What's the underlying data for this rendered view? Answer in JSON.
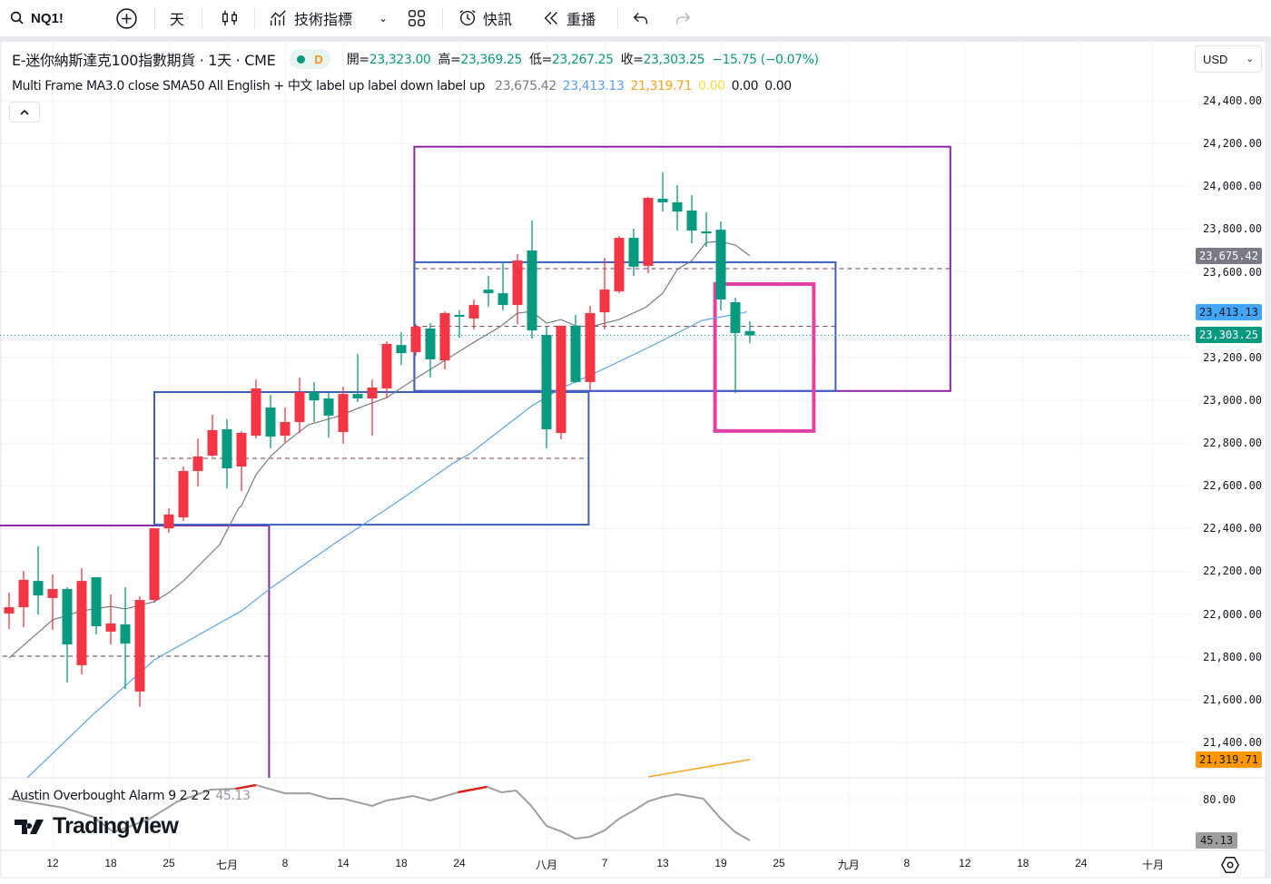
{
  "toolbar": {
    "symbol": "NQ1!",
    "interval": "天",
    "indicators_label": "技術指標",
    "alert_label": "快訊",
    "replay_label": "重播"
  },
  "legend": {
    "title": "E-迷你納斯達克100指數期貨 · 1天 · CME",
    "status_letter": "D",
    "open_label": "開=",
    "open": "23,323.00",
    "high_label": "高=",
    "high": "23,369.25",
    "low_label": "低=",
    "low": "23,267.25",
    "close_label": "收=",
    "close": "23,303.25",
    "change": "−15.75 (−0.07%)"
  },
  "indicator_legend": {
    "name": "Multi Frame MA3.0 close SMA50 All English + 中文 label up label down label up",
    "values": [
      {
        "text": "23,675.42",
        "color": "#787b86"
      },
      {
        "text": "23,413.13",
        "color": "#5b9cf6"
      },
      {
        "text": "21,319.71",
        "color": "#f7a21b"
      },
      {
        "text": "0.00",
        "color": "#f5e042"
      },
      {
        "text": "0.00",
        "color": "#131722"
      },
      {
        "text": "0.00",
        "color": "#131722"
      }
    ]
  },
  "currency": "USD",
  "price_axis": [
    "24,400.00",
    "24,200.00",
    "24,000.00",
    "23,800.00",
    "23,600.00",
    "23,200.00",
    "23,000.00",
    "22,800.00",
    "22,600.00",
    "22,400.00",
    "22,200.00",
    "22,000.00",
    "21,800.00",
    "21,600.00",
    "21,400.00"
  ],
  "price_tags": [
    {
      "text": "23,675.42",
      "value": 23675.42,
      "bg": "#787b86",
      "fg": "#ffffff"
    },
    {
      "text": "23,413.13",
      "value": 23413.13,
      "bg": "#42a5f5",
      "fg": "#131722"
    },
    {
      "text": "23,303.25",
      "value": 23303.25,
      "bg": "#089981",
      "fg": "#ffffff"
    },
    {
      "text": "21,319.71",
      "value": 21319.71,
      "bg": "#ff9800",
      "fg": "#131722"
    }
  ],
  "oscillator": {
    "name": "Austin Overbought Alarm 9 2 2 2",
    "value": "45.13",
    "axis_label": "80.00",
    "tag": "45.13"
  },
  "time_axis": [
    {
      "label": "12",
      "bar": 3
    },
    {
      "label": "18",
      "bar": 7
    },
    {
      "label": "25",
      "bar": 11
    },
    {
      "label": "七月",
      "bar": 15
    },
    {
      "label": "8",
      "bar": 19
    },
    {
      "label": "14",
      "bar": 23
    },
    {
      "label": "18",
      "bar": 27
    },
    {
      "label": "24",
      "bar": 31
    },
    {
      "label": "八月",
      "bar": 37
    },
    {
      "label": "7",
      "bar": 41
    },
    {
      "label": "13",
      "bar": 45
    },
    {
      "label": "19",
      "bar": 49
    },
    {
      "label": "25",
      "bar": 53
    },
    {
      "label": "九月",
      "bar": 57.8
    },
    {
      "label": "8",
      "bar": 61.8
    },
    {
      "label": "12",
      "bar": 65.8
    },
    {
      "label": "18",
      "bar": 69.8
    },
    {
      "label": "24",
      "bar": 73.8
    },
    {
      "label": "十月",
      "bar": 78.75
    }
  ],
  "colors": {
    "up": "#f23645",
    "down": "#089981",
    "ma": "#787b86",
    "sma50": "#5aa6e0",
    "ma_long": "#f7a21b",
    "osc": "#9e9e9e",
    "osc_hot": "#e0201b"
  },
  "chart_data": {
    "type": "candlestick",
    "y_range": [
      21200,
      24450
    ],
    "candles": [
      [
        22003,
        22100,
        21930,
        22032
      ],
      [
        22032,
        22202,
        21939,
        22160
      ],
      [
        22155,
        22317,
        21998,
        22087
      ],
      [
        22075,
        22185,
        21926,
        22117
      ],
      [
        22117,
        22126,
        21680,
        21858
      ],
      [
        21761,
        22215,
        21718,
        22155
      ],
      [
        22172,
        22172,
        21905,
        21943
      ],
      [
        21918,
        22092,
        21858,
        21956
      ],
      [
        21952,
        22126,
        21650,
        21862
      ],
      [
        21638,
        22083,
        21566,
        22066
      ],
      [
        22066,
        22401,
        22053,
        22401
      ],
      [
        22401,
        22495,
        22380,
        22465
      ],
      [
        22452,
        22690,
        22435,
        22669
      ],
      [
        22669,
        22821,
        22597,
        22737
      ],
      [
        22741,
        22932,
        22735,
        22860
      ],
      [
        22864,
        22911,
        22588,
        22681
      ],
      [
        22690,
        22855,
        22575,
        22847
      ],
      [
        22834,
        23097,
        22821,
        23055
      ],
      [
        22966,
        23025,
        22775,
        22830
      ],
      [
        22834,
        22966,
        22804,
        22898
      ],
      [
        22898,
        23106,
        22847,
        23038
      ],
      [
        23038,
        23085,
        22898,
        22999
      ],
      [
        23008,
        23034,
        22826,
        22928
      ],
      [
        22851,
        23063,
        22796,
        23029
      ],
      [
        23029,
        23216,
        22991,
        23008
      ],
      [
        23008,
        23097,
        22834,
        23059
      ],
      [
        23055,
        23275,
        23008,
        23263
      ],
      [
        23258,
        23318,
        23165,
        23220
      ],
      [
        23225,
        23356,
        23208,
        23343
      ],
      [
        23335,
        23360,
        23106,
        23191
      ],
      [
        23186,
        23415,
        23144,
        23407
      ],
      [
        23399,
        23420,
        23292,
        23390
      ],
      [
        23382,
        23471,
        23331,
        23445
      ],
      [
        23517,
        23581,
        23437,
        23500
      ],
      [
        23500,
        23649,
        23420,
        23445
      ],
      [
        23445,
        23683,
        23356,
        23653
      ],
      [
        23700,
        23840,
        23288,
        23326
      ],
      [
        23305,
        23343,
        22775,
        22864
      ],
      [
        22847,
        23348,
        22817,
        23348
      ],
      [
        23348,
        23399,
        23080,
        23085
      ],
      [
        23085,
        23441,
        23046,
        23407
      ],
      [
        23411,
        23666,
        23331,
        23517
      ],
      [
        23509,
        23768,
        23500,
        23759
      ],
      [
        23759,
        23802,
        23581,
        23624
      ],
      [
        23628,
        23950,
        23594,
        23946
      ],
      [
        23942,
        24065,
        23882,
        23925
      ],
      [
        23925,
        24005,
        23793,
        23882
      ],
      [
        23887,
        23959,
        23734,
        23793
      ],
      [
        23789,
        23878,
        23717,
        23780
      ],
      [
        23797,
        23836,
        23420,
        23471
      ],
      [
        23458,
        23479,
        23034,
        23314
      ],
      [
        23323,
        23369.25,
        23267.25,
        23303.25
      ]
    ],
    "candle_fields": [
      "open",
      "high",
      "low",
      "close"
    ],
    "ma_line": [
      [
        0,
        21795
      ],
      [
        3,
        21973
      ],
      [
        5,
        22015
      ],
      [
        7,
        22036
      ],
      [
        8,
        22024
      ],
      [
        10,
        22058
      ],
      [
        11,
        22100
      ],
      [
        12,
        22155
      ],
      [
        14.5,
        22325
      ],
      [
        15.8,
        22495
      ],
      [
        16,
        22507
      ],
      [
        17,
        22652
      ],
      [
        18,
        22737
      ],
      [
        19,
        22800
      ],
      [
        20.6,
        22885
      ],
      [
        22.8,
        22928
      ],
      [
        24,
        22962
      ],
      [
        26,
        23012
      ],
      [
        28,
        23102
      ],
      [
        30,
        23186
      ],
      [
        32,
        23271
      ],
      [
        33.8,
        23343
      ],
      [
        35,
        23407
      ],
      [
        36,
        23415
      ],
      [
        37,
        23360
      ],
      [
        38,
        23377
      ],
      [
        39,
        23348
      ],
      [
        40,
        23343
      ],
      [
        42,
        23377
      ],
      [
        43.8,
        23433
      ],
      [
        45,
        23500
      ],
      [
        46,
        23611
      ],
      [
        47,
        23653
      ],
      [
        48,
        23738
      ],
      [
        49,
        23742
      ],
      [
        50,
        23725
      ],
      [
        51,
        23675.42
      ]
    ],
    "sma50_line": [
      [
        1.25,
        21234
      ],
      [
        5.6,
        21519
      ],
      [
        10,
        21786
      ],
      [
        16,
        22015
      ],
      [
        18,
        22121
      ],
      [
        22.3,
        22325
      ],
      [
        27,
        22537
      ],
      [
        30.6,
        22707
      ],
      [
        31.7,
        22749
      ],
      [
        36,
        22974
      ],
      [
        38,
        23055
      ],
      [
        41.4,
        23161
      ],
      [
        44,
        23246
      ],
      [
        46,
        23314
      ],
      [
        47.7,
        23373
      ],
      [
        49.8,
        23399
      ],
      [
        50.8,
        23413.13
      ]
    ],
    "long_ma_line": [
      [
        44,
        21239
      ],
      [
        51,
        21319.71
      ]
    ],
    "last_price": 23303.25,
    "drawings": [
      {
        "kind": "box",
        "color": "#8e24aa",
        "bars": [
          -1,
          17.9
        ],
        "prices": [
          22414,
          21100
        ],
        "mid": 21803
      },
      {
        "kind": "box",
        "color": "#3d5fc4",
        "bars": [
          10,
          39.9
        ],
        "prices": [
          23038,
          22418
        ],
        "mid": 22728
      },
      {
        "kind": "box",
        "color": "#8e24aa",
        "bars": [
          27.9,
          64.8
        ],
        "prices": [
          24185,
          23043
        ],
        "mid": 23615
      },
      {
        "kind": "box",
        "color": "#3d5fc4",
        "bars": [
          27.9,
          56.9
        ],
        "prices": [
          23645,
          23043
        ],
        "mid": 23345
      },
      {
        "kind": "box",
        "color": "#e040a8",
        "bars": [
          48.6,
          55.4
        ],
        "prices": [
          23543,
          22856
        ],
        "thick": true
      }
    ],
    "oscillator_series": [
      [
        0,
        80
      ],
      [
        3.75,
        72.4
      ],
      [
        5.8,
        64.8
      ],
      [
        7.2,
        52
      ],
      [
        9.6,
        62.6
      ],
      [
        11.6,
        77.7
      ],
      [
        13.9,
        87.6
      ],
      [
        15.6,
        88.3
      ],
      [
        17,
        91.4
      ],
      [
        19,
        84.5
      ],
      [
        20.7,
        84.5
      ],
      [
        22,
        80
      ],
      [
        23,
        80
      ],
      [
        25,
        74
      ],
      [
        26,
        78.5
      ],
      [
        27.8,
        82.3
      ],
      [
        29,
        78.5
      ],
      [
        30.9,
        85.3
      ],
      [
        32.9,
        89.9
      ],
      [
        33.9,
        85.3
      ],
      [
        34.9,
        86.8
      ],
      [
        35.9,
        74.7
      ],
      [
        37,
        57.3
      ],
      [
        38,
        52.7
      ],
      [
        39,
        46.6
      ],
      [
        40,
        48.2
      ],
      [
        41,
        53.5
      ],
      [
        42,
        63.3
      ],
      [
        43,
        70.1
      ],
      [
        44,
        77.7
      ],
      [
        45,
        81.5
      ],
      [
        46,
        83.8
      ],
      [
        47.8,
        80
      ],
      [
        49,
        63.3
      ],
      [
        50,
        52
      ],
      [
        51,
        45.13
      ]
    ],
    "oscillator_overbought_ranges": [
      [
        15.6,
        17.5
      ],
      [
        30.9,
        32.9
      ]
    ]
  }
}
